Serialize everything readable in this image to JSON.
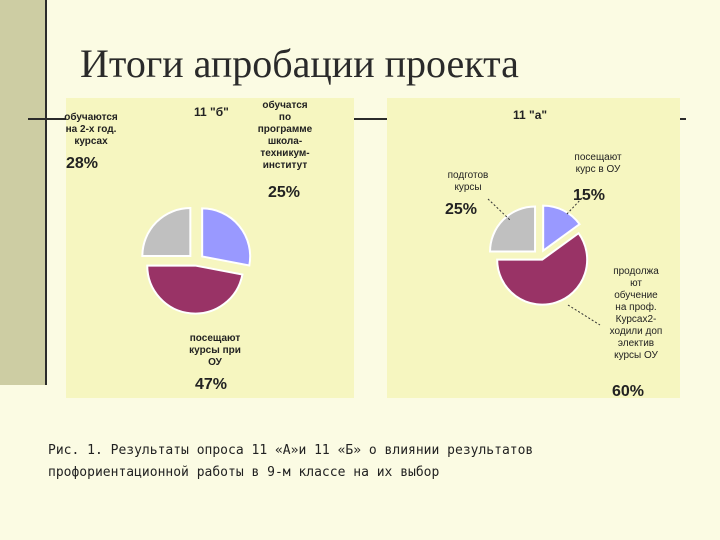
{
  "slide": {
    "title": "Итоги апробации проекта",
    "caption_line1": "Рис. 1. Результаты опроса 11 «А»и 11 «Б» о влиянии результатов",
    "caption_line2": "профориентационной работы в 9-м классе на их выбор"
  },
  "chart_data": [
    {
      "type": "pie",
      "title": "11 \"б\"",
      "labels": [
        "обучаются\nна 2-х год.\nкурсах",
        "обучатся\nпо\nпрограмме\nшкола-\nтехникум-\nинститут",
        "посещают\nкурсы при\nОУ"
      ],
      "printed_values": [
        "28%",
        "25%",
        "47%"
      ],
      "values": [
        28,
        25,
        47
      ],
      "colors": [
        "#9999ff",
        "#c0c0c0",
        "#993366"
      ]
    },
    {
      "type": "pie",
      "title": "11 \"а\"",
      "labels": [
        "подготов\nкурсы",
        "посещают\nкурс в ОУ",
        "продолжа\nют\nобучение\nна проф.\nКурсах2-\nходили доп\nэлектив\nкурсы ОУ"
      ],
      "printed_values": [
        "25%",
        "15%",
        "60%"
      ],
      "values": [
        25,
        15,
        60
      ],
      "colors": [
        "#c0c0c0",
        "#9999ff",
        "#993366"
      ]
    }
  ]
}
